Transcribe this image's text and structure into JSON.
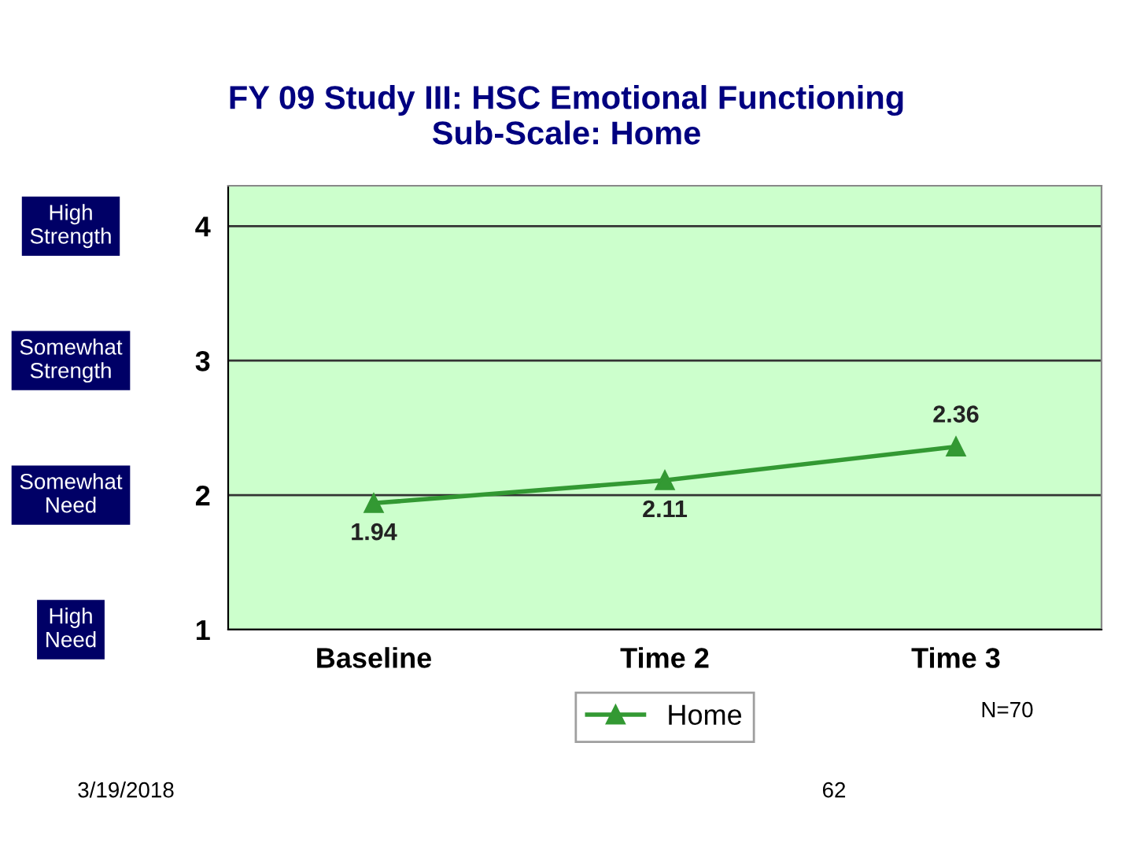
{
  "chart_data": {
    "type": "line",
    "title": "FY 09 Study III: HSC Emotional Functioning\nSub-Scale: Home",
    "categories": [
      "Baseline",
      "Time 2",
      "Time 3"
    ],
    "series": [
      {
        "name": "Home",
        "color": "#339933",
        "values": [
          1.94,
          2.11,
          2.36
        ]
      }
    ],
    "ylim": [
      1,
      4.3
    ],
    "yticks": [
      1,
      2,
      3,
      4
    ],
    "grid": "y",
    "legend": "bottom",
    "marker": "triangle",
    "line_style": "solid",
    "data_labels": true,
    "annotations": [
      "High Strength",
      "Somewhat Strength",
      "Somewhat Need",
      "High Need",
      "N=70",
      "3/19/2018",
      "62"
    ]
  }
}
